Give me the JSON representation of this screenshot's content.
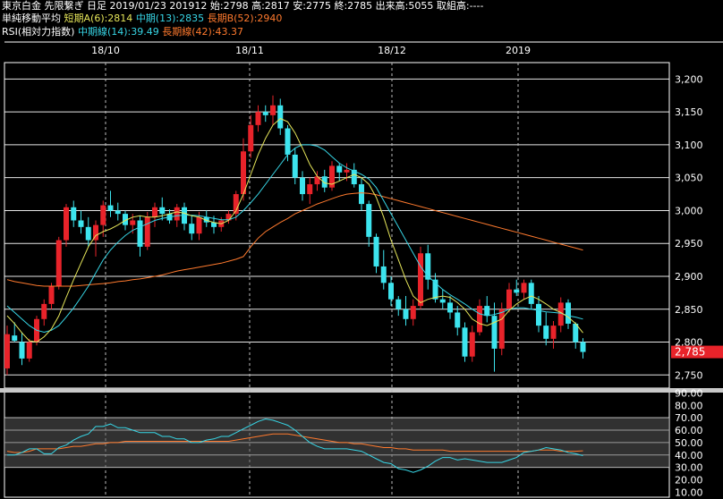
{
  "header": {
    "line1": "東京白金 先限繋ぎ 日足 2019/01/23 201912 始:2798 高:2817 安:2775 終:2785 出来高:5055 取組高:----",
    "ma_title": "単純移動平均",
    "ma_short": "短期A(6):2814",
    "ma_mid": "中期(13):2835",
    "ma_long": "長期B(52):2940",
    "rsi_title": "RSI(相対力指数)",
    "rsi_mid": "中期線(14):39.49",
    "rsi_long": "長期線(42):43.37"
  },
  "colors": {
    "background": "#000000",
    "up_candle": "#e8232a",
    "down_candle": "#3de4ee",
    "ma_short": "#e6e65a",
    "ma_mid": "#37d6e6",
    "ma_long": "#ff7a2e",
    "grid": "#ffffff",
    "price_badge": "#e8232a"
  },
  "chart_data": [
    {
      "type": "candlestick",
      "title": "東京白金 先限繋ぎ 日足",
      "x_tick_labels": [
        "18/10",
        "18/11",
        "18/12",
        "2019"
      ],
      "y_ticks": [
        2750,
        2800,
        2850,
        2900,
        2950,
        3000,
        3050,
        3100,
        3150,
        3200
      ],
      "ylim": [
        2730,
        3225
      ],
      "grid": true,
      "last_price_label": "2,785",
      "ohlc": [
        [
          2760,
          2825,
          2750,
          2812
        ],
        [
          2810,
          2830,
          2800,
          2802
        ],
        [
          2800,
          2815,
          2765,
          2775
        ],
        [
          2775,
          2805,
          2770,
          2800
        ],
        [
          2800,
          2840,
          2795,
          2835
        ],
        [
          2835,
          2865,
          2825,
          2858
        ],
        [
          2858,
          2890,
          2850,
          2885
        ],
        [
          2885,
          2960,
          2880,
          2955
        ],
        [
          2955,
          3010,
          2945,
          3005
        ],
        [
          3005,
          3015,
          2975,
          2985
        ],
        [
          2985,
          3000,
          2965,
          2975
        ],
        [
          2975,
          2990,
          2945,
          2955
        ],
        [
          2955,
          2985,
          2930,
          2978
        ],
        [
          2978,
          3015,
          2960,
          3008
        ],
        [
          3008,
          3030,
          2990,
          3000
        ],
        [
          3000,
          3012,
          2985,
          2995
        ],
        [
          2995,
          3000,
          2970,
          2978
        ],
        [
          2978,
          2995,
          2965,
          2985
        ],
        [
          2985,
          2992,
          2930,
          2945
        ],
        [
          2945,
          2998,
          2940,
          2990
        ],
        [
          2990,
          3012,
          2975,
          3005
        ],
        [
          3005,
          3020,
          2985,
          2995
        ],
        [
          2995,
          3002,
          2980,
          2985
        ],
        [
          2985,
          3010,
          2975,
          3005
        ],
        [
          3005,
          3012,
          2970,
          2980
        ],
        [
          2980,
          2992,
          2955,
          2965
        ],
        [
          2965,
          2998,
          2955,
          2990
        ],
        [
          2990,
          3000,
          2975,
          2982
        ],
        [
          2982,
          2992,
          2965,
          2975
        ],
        [
          2975,
          2990,
          2968,
          2985
        ],
        [
          2985,
          3000,
          2980,
          2995
        ],
        [
          2995,
          3030,
          2985,
          3025
        ],
        [
          3025,
          3110,
          3015,
          3090
        ],
        [
          3090,
          3145,
          3080,
          3130
        ],
        [
          3130,
          3160,
          3120,
          3150
        ],
        [
          3150,
          3160,
          3135,
          3145
        ],
        [
          3145,
          3175,
          3130,
          3160
        ],
        [
          3160,
          3170,
          3115,
          3125
        ],
        [
          3125,
          3130,
          3075,
          3085
        ],
        [
          3085,
          3095,
          3040,
          3050
        ],
        [
          3050,
          3060,
          3015,
          3025
        ],
        [
          3025,
          3050,
          3010,
          3040
        ],
        [
          3040,
          3060,
          3030,
          3052
        ],
        [
          3052,
          3062,
          3028,
          3035
        ],
        [
          3035,
          3075,
          3030,
          3068
        ],
        [
          3068,
          3072,
          3045,
          3058
        ],
        [
          3058,
          3072,
          3045,
          3062
        ],
        [
          3062,
          3072,
          3035,
          3040
        ],
        [
          3040,
          3050,
          3000,
          3010
        ],
        [
          3010,
          3015,
          2945,
          2960
        ],
        [
          2960,
          2965,
          2905,
          2915
        ],
        [
          2915,
          2940,
          2880,
          2890
        ],
        [
          2890,
          2900,
          2855,
          2865
        ],
        [
          2865,
          2870,
          2840,
          2850
        ],
        [
          2850,
          2870,
          2825,
          2835
        ],
        [
          2835,
          2865,
          2825,
          2855
        ],
        [
          2855,
          2945,
          2850,
          2935
        ],
        [
          2935,
          2948,
          2880,
          2895
        ],
        [
          2895,
          2905,
          2860,
          2865
        ],
        [
          2865,
          2880,
          2850,
          2860
        ],
        [
          2860,
          2870,
          2835,
          2845
        ],
        [
          2845,
          2855,
          2810,
          2822
        ],
        [
          2822,
          2830,
          2770,
          2778
        ],
        [
          2778,
          2825,
          2770,
          2815
        ],
        [
          2815,
          2865,
          2810,
          2855
        ],
        [
          2855,
          2870,
          2830,
          2840
        ],
        [
          2840,
          2860,
          2755,
          2790
        ],
        [
          2790,
          2860,
          2780,
          2850
        ],
        [
          2850,
          2890,
          2845,
          2880
        ],
        [
          2880,
          2895,
          2870,
          2875
        ],
        [
          2875,
          2895,
          2865,
          2890
        ],
        [
          2890,
          2895,
          2850,
          2858
        ],
        [
          2858,
          2870,
          2815,
          2825
        ],
        [
          2825,
          2845,
          2795,
          2805
        ],
        [
          2805,
          2832,
          2790,
          2825
        ],
        [
          2825,
          2868,
          2815,
          2860
        ],
        [
          2860,
          2865,
          2820,
          2828
        ],
        [
          2828,
          2830,
          2790,
          2800
        ],
        [
          2800,
          2806,
          2775,
          2785
        ]
      ],
      "ma_short": [
        2840,
        2828,
        2814,
        2802,
        2800,
        2808,
        2820,
        2840,
        2868,
        2895,
        2920,
        2945,
        2962,
        2968,
        2972,
        2978,
        2985,
        2990,
        2992,
        2990,
        2990,
        2992,
        2995,
        2998,
        2996,
        2992,
        2990,
        2985,
        2982,
        2980,
        2985,
        3000,
        3025,
        3055,
        3085,
        3110,
        3130,
        3140,
        3135,
        3118,
        3095,
        3070,
        3052,
        3042,
        3040,
        3045,
        3050,
        3055,
        3050,
        3040,
        3020,
        2990,
        2955,
        2925,
        2895,
        2870,
        2860,
        2865,
        2868,
        2870,
        2868,
        2860,
        2850,
        2835,
        2828,
        2825,
        2830,
        2835,
        2848,
        2858,
        2865,
        2870,
        2865,
        2858,
        2850,
        2845,
        2838,
        2828,
        2814
      ],
      "ma_mid": [
        2855,
        2845,
        2835,
        2825,
        2818,
        2815,
        2818,
        2825,
        2838,
        2852,
        2868,
        2885,
        2905,
        2925,
        2940,
        2952,
        2962,
        2970,
        2975,
        2980,
        2985,
        2988,
        2990,
        2992,
        2993,
        2993,
        2992,
        2990,
        2988,
        2986,
        2986,
        2990,
        3000,
        3012,
        3025,
        3040,
        3055,
        3070,
        3085,
        3095,
        3100,
        3100,
        3098,
        3092,
        3082,
        3072,
        3065,
        3060,
        3055,
        3048,
        3035,
        3015,
        2995,
        2975,
        2955,
        2935,
        2915,
        2900,
        2890,
        2880,
        2872,
        2865,
        2858,
        2850,
        2843,
        2840,
        2842,
        2845,
        2850,
        2852,
        2852,
        2850,
        2848,
        2846,
        2845,
        2844,
        2840,
        2838,
        2835
      ],
      "ma_long": [
        2895,
        2892,
        2890,
        2888,
        2886,
        2885,
        2885,
        2885,
        2885,
        2885,
        2886,
        2887,
        2888,
        2889,
        2890,
        2892,
        2893,
        2895,
        2896,
        2898,
        2900,
        2902,
        2905,
        2908,
        2910,
        2912,
        2914,
        2916,
        2918,
        2920,
        2923,
        2926,
        2930,
        2945,
        2958,
        2968,
        2975,
        2982,
        2988,
        2995,
        3000,
        3005,
        3010,
        3014,
        3018,
        3022,
        3025,
        3026,
        3027,
        3026,
        3024,
        3021,
        3018,
        3015,
        3012,
        3009,
        3006,
        3003,
        3000,
        2997,
        2994,
        2991,
        2988,
        2985,
        2982,
        2979,
        2976,
        2973,
        2970,
        2967,
        2964,
        2961,
        2958,
        2955,
        2952,
        2949,
        2946,
        2943,
        2940
      ]
    },
    {
      "type": "line",
      "title": "RSI(相対力指数)",
      "y_tick_labels": [
        "90.00",
        "80.00",
        "70.00",
        "60.00",
        "50.00",
        "40.00",
        "30.00",
        "20.00",
        "10.00"
      ],
      "ylim": [
        6,
        91
      ],
      "grid": true,
      "series": [
        {
          "name": "中期線(14)",
          "color": "#37d6e6",
          "values": [
            40,
            40,
            42,
            45,
            45,
            41,
            41,
            46,
            48,
            52,
            55,
            57,
            63,
            63,
            65,
            62,
            62,
            60,
            58,
            58,
            58,
            55,
            55,
            53,
            53,
            50,
            50,
            52,
            53,
            55,
            55,
            58,
            61,
            64,
            67,
            69,
            68,
            66,
            64,
            60,
            55,
            50,
            47,
            45,
            45,
            45,
            45,
            44,
            43,
            40,
            37,
            34,
            33,
            29,
            28,
            26,
            28,
            31,
            35,
            38,
            38,
            36,
            37,
            36,
            35,
            34,
            34,
            34,
            36,
            38,
            42,
            43,
            44,
            46,
            45,
            44,
            42,
            41,
            39.49
          ]
        },
        {
          "name": "長期線(42)",
          "color": "#ff7a2e",
          "values": [
            43,
            42,
            42,
            43,
            45,
            45,
            45,
            45,
            46,
            47,
            47,
            48,
            49,
            49,
            50,
            50,
            51,
            51,
            51,
            51,
            51,
            51,
            51,
            51,
            51,
            51,
            51,
            51,
            51,
            51,
            51,
            52,
            53,
            54,
            55,
            56,
            57,
            57,
            57,
            56,
            55,
            54,
            53,
            52,
            51,
            50,
            50,
            49,
            49,
            48,
            47,
            46,
            46,
            45,
            45,
            44,
            44,
            44,
            44,
            44,
            43,
            43,
            43,
            43,
            43,
            43,
            43,
            43,
            43,
            43,
            43,
            43,
            44,
            44,
            44,
            43,
            43,
            43,
            43.37
          ]
        }
      ]
    }
  ]
}
